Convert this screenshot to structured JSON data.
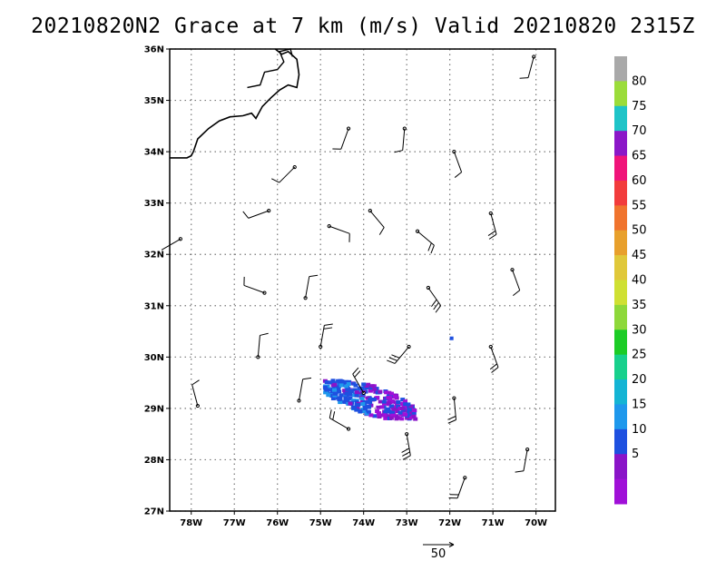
{
  "title": "20210820N2 Grace at 7 km (m/s) Valid 20210820 2315Z",
  "chart_data": {
    "type": "map",
    "lat_ticks": [
      "36N",
      "35N",
      "34N",
      "33N",
      "32N",
      "31N",
      "30N",
      "29N",
      "28N",
      "27N"
    ],
    "lon_ticks": [
      "78W",
      "77W",
      "76W",
      "75W",
      "74W",
      "73W",
      "72W",
      "71W",
      "70W"
    ],
    "lon_range": [
      -78.5,
      -69.55
    ],
    "lat_range": [
      27,
      36
    ],
    "grid": "dotted",
    "colorbar": {
      "labels": [
        "80",
        "75",
        "70",
        "65",
        "60",
        "55",
        "50",
        "45",
        "40",
        "35",
        "30",
        "25",
        "20",
        "15",
        "10",
        "5"
      ],
      "colors": [
        "#a9a9a9",
        "#9bdc3a",
        "#1fc4c8",
        "#8b17c8",
        "#f0147a",
        "#f23c3c",
        "#f0742e",
        "#e8a02c",
        "#e0c83a",
        "#cfe033",
        "#8ed83a",
        "#1ccc26",
        "#18d08c",
        "#14b4d4",
        "#1e98ec",
        "#1e50e0",
        "#8a14c8",
        "#a010d8"
      ]
    },
    "wind_barbs": [
      {
        "lon": -70.05,
        "lat": 35.85,
        "angle": 195,
        "barbs": 1
      },
      {
        "lon": -74.35,
        "lat": 34.45,
        "angle": 200,
        "barbs": 1
      },
      {
        "lon": -73.05,
        "lat": 34.45,
        "angle": 185,
        "barbs": 1
      },
      {
        "lon": -71.9,
        "lat": 34.0,
        "angle": 160,
        "barbs": 1
      },
      {
        "lon": -75.6,
        "lat": 33.7,
        "angle": 225,
        "barbs": 1
      },
      {
        "lon": -76.2,
        "lat": 32.85,
        "angle": 250,
        "barbs": 1
      },
      {
        "lon": -74.8,
        "lat": 32.55,
        "angle": 110,
        "barbs": 1
      },
      {
        "lon": -73.85,
        "lat": 32.85,
        "angle": 140,
        "barbs": 1
      },
      {
        "lon": -72.75,
        "lat": 32.45,
        "angle": 130,
        "barbs": 2
      },
      {
        "lon": -71.05,
        "lat": 32.8,
        "angle": 165,
        "barbs": 2
      },
      {
        "lon": -70.55,
        "lat": 31.7,
        "angle": 160,
        "barbs": 1
      },
      {
        "lon": -78.25,
        "lat": 32.3,
        "angle": 240,
        "barbs": 0
      },
      {
        "lon": -76.3,
        "lat": 31.25,
        "angle": 290,
        "barbs": 1
      },
      {
        "lon": -75.35,
        "lat": 31.15,
        "angle": 10,
        "barbs": 1
      },
      {
        "lon": -72.5,
        "lat": 31.35,
        "angle": 145,
        "barbs": 3
      },
      {
        "lon": -75.0,
        "lat": 30.2,
        "angle": 10,
        "barbs": 2
      },
      {
        "lon": -76.45,
        "lat": 30.0,
        "angle": 5,
        "barbs": 1
      },
      {
        "lon": -72.95,
        "lat": 30.2,
        "angle": 220,
        "barbs": 3
      },
      {
        "lon": -71.05,
        "lat": 30.2,
        "angle": 160,
        "barbs": 2
      },
      {
        "lon": -77.85,
        "lat": 29.05,
        "angle": 345,
        "barbs": 1
      },
      {
        "lon": -75.5,
        "lat": 29.15,
        "angle": 10,
        "barbs": 1
      },
      {
        "lon": -74.0,
        "lat": 29.3,
        "angle": 330,
        "barbs": 2
      },
      {
        "lon": -74.35,
        "lat": 28.6,
        "angle": 300,
        "barbs": 2
      },
      {
        "lon": -71.9,
        "lat": 29.2,
        "angle": 175,
        "barbs": 2
      },
      {
        "lon": -73.0,
        "lat": 28.5,
        "angle": 170,
        "barbs": 3
      },
      {
        "lon": -70.2,
        "lat": 28.2,
        "angle": 190,
        "barbs": 1
      },
      {
        "lon": -71.65,
        "lat": 27.65,
        "angle": 200,
        "barbs": 2
      }
    ],
    "reference_vector_label": "50"
  }
}
